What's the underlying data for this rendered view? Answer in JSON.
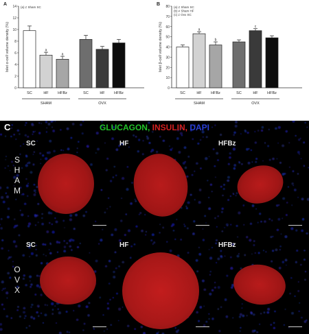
{
  "chart_data": [
    {
      "type": "bar",
      "panel_letter": "A",
      "ylabel": "Islet α-cell volume density (%)",
      "ylim": [
        0,
        14
      ],
      "yticks": [
        0,
        2,
        4,
        6,
        8,
        10,
        12,
        14
      ],
      "categories": [
        "SC",
        "HF",
        "HFBz",
        "SC",
        "HF",
        "HFBz"
      ],
      "groups": [
        "SHAM",
        "OVX"
      ],
      "values": [
        9.8,
        5.6,
        4.9,
        8.3,
        6.6,
        7.7
      ],
      "errors": [
        0.8,
        0.5,
        0.5,
        0.7,
        0.5,
        0.6
      ],
      "sig_labels": [
        "",
        "a",
        "a",
        "",
        "",
        ""
      ],
      "colors": [
        "#ffffff",
        "#d2d2d2",
        "#a6a6a6",
        "#6e6e6e",
        "#3a3a3a",
        "#0d0d0d"
      ],
      "legend": [
        "(a) ≠ Sham SC"
      ],
      "legend_position": "top-left"
    },
    {
      "type": "bar",
      "panel_letter": "B",
      "ylabel": "Islet β-cell volume density (%)",
      "ylim": [
        0,
        80
      ],
      "yticks": [
        0,
        10,
        20,
        30,
        40,
        50,
        60,
        70,
        80
      ],
      "categories": [
        "SC",
        "HF",
        "HFBz",
        "SC",
        "HF",
        "HFBz"
      ],
      "groups": [
        "SHAM",
        "OVX"
      ],
      "values": [
        40,
        53,
        42,
        45,
        56,
        49
      ],
      "errors": [
        2,
        2,
        3,
        2,
        2,
        2
      ],
      "sig_labels": [
        "",
        "a",
        "b",
        "",
        "c",
        ""
      ],
      "colors": [
        "#ffffff",
        "#d2d2d2",
        "#a6a6a6",
        "#6e6e6e",
        "#3a3a3a",
        "#0d0d0d"
      ],
      "legend": [
        "(a) ≠ Sham SC",
        "(b) ≠ Sham HF",
        "(c) ≠ Ovx SC"
      ],
      "legend_position": "top-left"
    }
  ],
  "panel_c": {
    "letter": "C",
    "stain_labels": [
      {
        "text": "GLUCAGON,",
        "color": "#22c22a"
      },
      {
        "text": "INSULIN,",
        "color": "#d42020"
      },
      {
        "text": "DAPI",
        "color": "#2a3fd8"
      }
    ],
    "row_labels": [
      [
        "S",
        "H",
        "A",
        "M"
      ],
      [
        "O",
        "V",
        "X"
      ]
    ],
    "col_labels": [
      "SC",
      "HF",
      "HFBz"
    ]
  }
}
